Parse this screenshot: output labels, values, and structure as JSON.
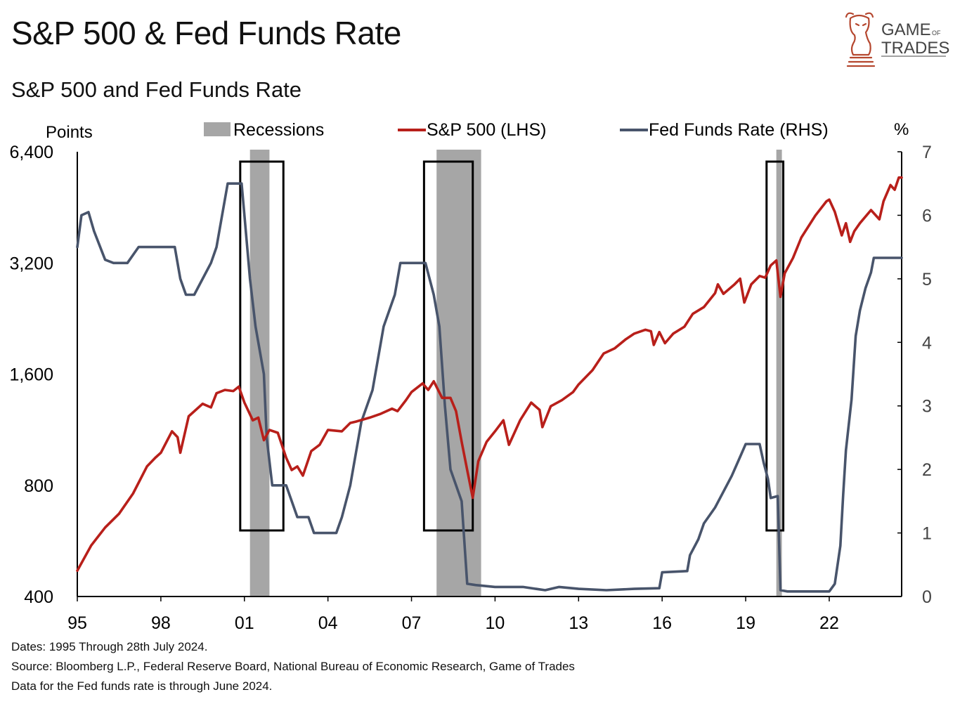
{
  "title": "S&P 500 & Fed Funds Rate",
  "subtitle": "S&P 500 and Fed Funds Rate",
  "logo": {
    "line1": "GAME",
    "of": "OF",
    "line2": "TRADES",
    "icon": "bull-chess-knight-icon",
    "color": "#b5472f"
  },
  "footnotes": [
    "Dates: 1995 Through 28th July 2024.",
    "Source: Bloomberg L.P., Federal Reserve Board, National Bureau of Economic Research, Game of Trades",
    "Data for the Fed funds rate is through June 2024."
  ],
  "chart_data": {
    "type": "line",
    "left_axis": {
      "label": "Points",
      "scale": "log",
      "ticks": [
        400,
        800,
        1600,
        3200,
        6400
      ],
      "tick_labels": [
        "400",
        "800",
        "1,600",
        "3,200",
        "6,400"
      ],
      "range": [
        400,
        6400
      ]
    },
    "right_axis": {
      "label": "%",
      "ticks": [
        0,
        1,
        2,
        3,
        4,
        5,
        6,
        7
      ],
      "range": [
        0,
        7
      ]
    },
    "x_axis": {
      "range": [
        1995.0,
        2024.6
      ],
      "ticks": [
        1995,
        1998,
        2001,
        2004,
        2007,
        2010,
        2013,
        2016,
        2019,
        2022
      ],
      "tick_labels": [
        "95",
        "98",
        "01",
        "04",
        "07",
        "10",
        "13",
        "16",
        "19",
        "22"
      ]
    },
    "legend": [
      {
        "label": "Recessions",
        "kind": "box",
        "color": "#a6a6a6"
      },
      {
        "label": "S&P 500 (LHS)",
        "kind": "line",
        "color": "#b81f1a"
      },
      {
        "label": "Fed Funds Rate (RHS)",
        "kind": "line",
        "color": "#48546b"
      }
    ],
    "recessions": [
      [
        2001.2,
        2001.9
      ],
      [
        2007.9,
        2009.5
      ],
      [
        2020.1,
        2020.3
      ]
    ],
    "highlight_boxes": [
      [
        2000.85,
        2002.4
      ],
      [
        2007.45,
        2009.2
      ],
      [
        2019.75,
        2020.35
      ]
    ],
    "series": [
      {
        "name": "S&P 500 (LHS)",
        "axis": "left",
        "color": "#b81f1a",
        "points": [
          [
            1995.0,
            470
          ],
          [
            1995.5,
            550
          ],
          [
            1996.0,
            615
          ],
          [
            1996.5,
            670
          ],
          [
            1997.0,
            760
          ],
          [
            1997.5,
            900
          ],
          [
            1997.8,
            950
          ],
          [
            1998.0,
            980
          ],
          [
            1998.4,
            1120
          ],
          [
            1998.6,
            1080
          ],
          [
            1998.7,
            980
          ],
          [
            1999.0,
            1230
          ],
          [
            1999.5,
            1330
          ],
          [
            1999.8,
            1300
          ],
          [
            2000.0,
            1420
          ],
          [
            2000.3,
            1450
          ],
          [
            2000.6,
            1440
          ],
          [
            2000.8,
            1480
          ],
          [
            2001.0,
            1340
          ],
          [
            2001.3,
            1200
          ],
          [
            2001.5,
            1220
          ],
          [
            2001.7,
            1060
          ],
          [
            2001.9,
            1130
          ],
          [
            2002.2,
            1110
          ],
          [
            2002.5,
            950
          ],
          [
            2002.7,
            880
          ],
          [
            2002.9,
            900
          ],
          [
            2003.1,
            850
          ],
          [
            2003.4,
            990
          ],
          [
            2003.7,
            1030
          ],
          [
            2004.0,
            1130
          ],
          [
            2004.5,
            1120
          ],
          [
            2004.8,
            1180
          ],
          [
            2005.0,
            1190
          ],
          [
            2005.5,
            1220
          ],
          [
            2005.9,
            1250
          ],
          [
            2006.3,
            1290
          ],
          [
            2006.5,
            1270
          ],
          [
            2006.8,
            1360
          ],
          [
            2007.0,
            1430
          ],
          [
            2007.4,
            1510
          ],
          [
            2007.6,
            1450
          ],
          [
            2007.8,
            1530
          ],
          [
            2008.1,
            1380
          ],
          [
            2008.4,
            1380
          ],
          [
            2008.6,
            1270
          ],
          [
            2008.8,
            1050
          ],
          [
            2009.0,
            880
          ],
          [
            2009.2,
            740
          ],
          [
            2009.4,
            930
          ],
          [
            2009.7,
            1050
          ],
          [
            2010.0,
            1120
          ],
          [
            2010.3,
            1200
          ],
          [
            2010.5,
            1030
          ],
          [
            2010.9,
            1200
          ],
          [
            2011.3,
            1340
          ],
          [
            2011.6,
            1280
          ],
          [
            2011.7,
            1150
          ],
          [
            2012.0,
            1310
          ],
          [
            2012.4,
            1360
          ],
          [
            2012.8,
            1430
          ],
          [
            2013.0,
            1500
          ],
          [
            2013.5,
            1640
          ],
          [
            2013.9,
            1820
          ],
          [
            2014.3,
            1880
          ],
          [
            2014.7,
            1990
          ],
          [
            2015.0,
            2060
          ],
          [
            2015.4,
            2110
          ],
          [
            2015.6,
            2090
          ],
          [
            2015.7,
            1920
          ],
          [
            2015.9,
            2080
          ],
          [
            2016.1,
            1940
          ],
          [
            2016.4,
            2060
          ],
          [
            2016.8,
            2150
          ],
          [
            2017.1,
            2330
          ],
          [
            2017.5,
            2430
          ],
          [
            2017.9,
            2650
          ],
          [
            2018.0,
            2800
          ],
          [
            2018.2,
            2640
          ],
          [
            2018.6,
            2800
          ],
          [
            2018.8,
            2900
          ],
          [
            2018.95,
            2500
          ],
          [
            2019.2,
            2800
          ],
          [
            2019.5,
            2950
          ],
          [
            2019.7,
            2920
          ],
          [
            2019.9,
            3150
          ],
          [
            2020.1,
            3250
          ],
          [
            2020.25,
            2590
          ],
          [
            2020.4,
            3000
          ],
          [
            2020.7,
            3300
          ],
          [
            2021.0,
            3750
          ],
          [
            2021.5,
            4300
          ],
          [
            2021.9,
            4700
          ],
          [
            2022.0,
            4750
          ],
          [
            2022.2,
            4400
          ],
          [
            2022.45,
            3800
          ],
          [
            2022.6,
            4100
          ],
          [
            2022.75,
            3650
          ],
          [
            2022.9,
            3900
          ],
          [
            2023.1,
            4100
          ],
          [
            2023.5,
            4450
          ],
          [
            2023.8,
            4200
          ],
          [
            2023.95,
            4700
          ],
          [
            2024.2,
            5200
          ],
          [
            2024.35,
            5050
          ],
          [
            2024.5,
            5450
          ],
          [
            2024.6,
            5450
          ]
        ]
      },
      {
        "name": "Fed Funds Rate (RHS)",
        "axis": "right",
        "color": "#48546b",
        "points": [
          [
            1995.0,
            5.5
          ],
          [
            1995.15,
            6.0
          ],
          [
            1995.4,
            6.05
          ],
          [
            1995.6,
            5.75
          ],
          [
            1996.0,
            5.3
          ],
          [
            1996.3,
            5.25
          ],
          [
            1996.8,
            5.25
          ],
          [
            1997.2,
            5.5
          ],
          [
            1997.6,
            5.5
          ],
          [
            1998.0,
            5.5
          ],
          [
            1998.5,
            5.5
          ],
          [
            1998.7,
            5.0
          ],
          [
            1998.9,
            4.75
          ],
          [
            1999.2,
            4.75
          ],
          [
            1999.5,
            5.0
          ],
          [
            1999.8,
            5.25
          ],
          [
            2000.0,
            5.5
          ],
          [
            2000.4,
            6.5
          ],
          [
            2000.5,
            6.5
          ],
          [
            2000.9,
            6.5
          ],
          [
            2001.0,
            6.0
          ],
          [
            2001.2,
            5.0
          ],
          [
            2001.4,
            4.25
          ],
          [
            2001.7,
            3.5
          ],
          [
            2001.8,
            2.5
          ],
          [
            2002.0,
            1.75
          ],
          [
            2002.5,
            1.75
          ],
          [
            2002.9,
            1.25
          ],
          [
            2003.3,
            1.25
          ],
          [
            2003.5,
            1.0
          ],
          [
            2004.3,
            1.0
          ],
          [
            2004.5,
            1.25
          ],
          [
            2004.8,
            1.75
          ],
          [
            2005.2,
            2.75
          ],
          [
            2005.6,
            3.25
          ],
          [
            2006.0,
            4.25
          ],
          [
            2006.4,
            4.75
          ],
          [
            2006.6,
            5.25
          ],
          [
            2007.5,
            5.25
          ],
          [
            2007.8,
            4.75
          ],
          [
            2008.0,
            4.25
          ],
          [
            2008.2,
            3.0
          ],
          [
            2008.4,
            2.0
          ],
          [
            2008.8,
            1.5
          ],
          [
            2009.0,
            0.2
          ],
          [
            2009.3,
            0.18
          ],
          [
            2010.0,
            0.15
          ],
          [
            2011.0,
            0.15
          ],
          [
            2011.8,
            0.1
          ],
          [
            2012.3,
            0.15
          ],
          [
            2013.0,
            0.12
          ],
          [
            2014.0,
            0.1
          ],
          [
            2015.0,
            0.12
          ],
          [
            2015.9,
            0.13
          ],
          [
            2016.0,
            0.38
          ],
          [
            2016.9,
            0.4
          ],
          [
            2017.0,
            0.65
          ],
          [
            2017.3,
            0.9
          ],
          [
            2017.5,
            1.15
          ],
          [
            2017.9,
            1.4
          ],
          [
            2018.2,
            1.65
          ],
          [
            2018.5,
            1.9
          ],
          [
            2018.8,
            2.2
          ],
          [
            2019.0,
            2.4
          ],
          [
            2019.5,
            2.4
          ],
          [
            2019.65,
            2.1
          ],
          [
            2019.8,
            1.85
          ],
          [
            2019.9,
            1.55
          ],
          [
            2020.15,
            1.58
          ],
          [
            2020.25,
            0.1
          ],
          [
            2020.5,
            0.08
          ],
          [
            2021.0,
            0.08
          ],
          [
            2021.5,
            0.08
          ],
          [
            2022.0,
            0.08
          ],
          [
            2022.2,
            0.2
          ],
          [
            2022.4,
            0.8
          ],
          [
            2022.5,
            1.6
          ],
          [
            2022.6,
            2.3
          ],
          [
            2022.8,
            3.1
          ],
          [
            2022.95,
            4.1
          ],
          [
            2023.1,
            4.5
          ],
          [
            2023.3,
            4.85
          ],
          [
            2023.5,
            5.1
          ],
          [
            2023.6,
            5.33
          ],
          [
            2024.6,
            5.33
          ]
        ]
      }
    ]
  }
}
